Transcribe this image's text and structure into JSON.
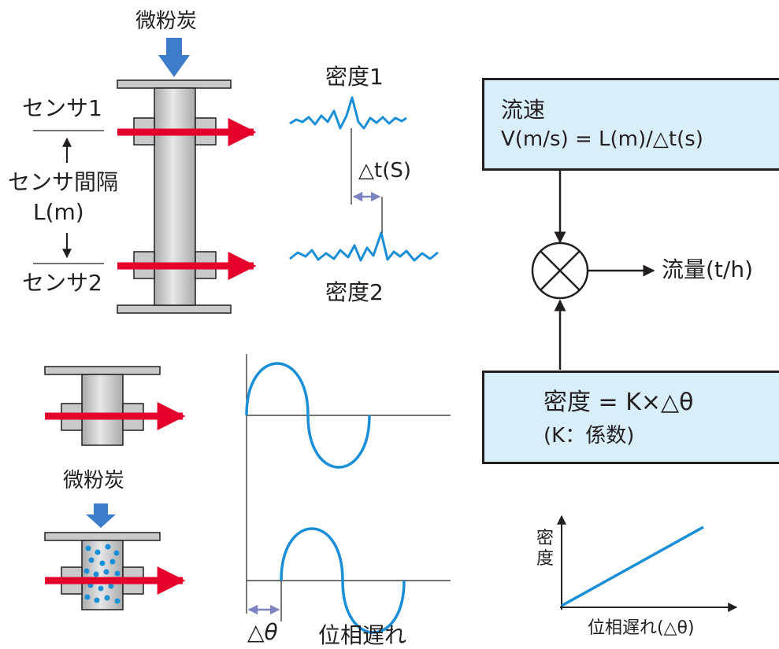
{
  "top": {
    "coal_label": "微粉炭",
    "sensor1_label": "センサ1",
    "sensor_gap_label": "センサ間隔",
    "sensor_gap_unit": "L(m)",
    "sensor2_label": "センサ2",
    "density1_label": "密度1",
    "delta_t_label": "△t(S)",
    "density2_label": "密度2"
  },
  "velocity_box": {
    "title": "流速",
    "formula": "V(m/s) = L(m)/△t(s)"
  },
  "flow_label": "流量(t/h)",
  "density_box": {
    "formula": "密度 = K×△θ",
    "note": "(K：係数)"
  },
  "bottom": {
    "coal_label": "微粉炭",
    "delta_theta_label": "△θ",
    "phase_lag_label": "位相遅れ"
  },
  "mini_chart": {
    "y_label": "密度",
    "x_label": "位相遅れ(△θ)"
  },
  "colors": {
    "red_arrow": "#e4002b",
    "blue_arrow": "#3d7cc9",
    "signal_blue": "#1a8fd6",
    "box_fill": "#d8eef9",
    "pipe_gray": "#c8c9ca",
    "interval_arrow": "#7b84c0"
  }
}
